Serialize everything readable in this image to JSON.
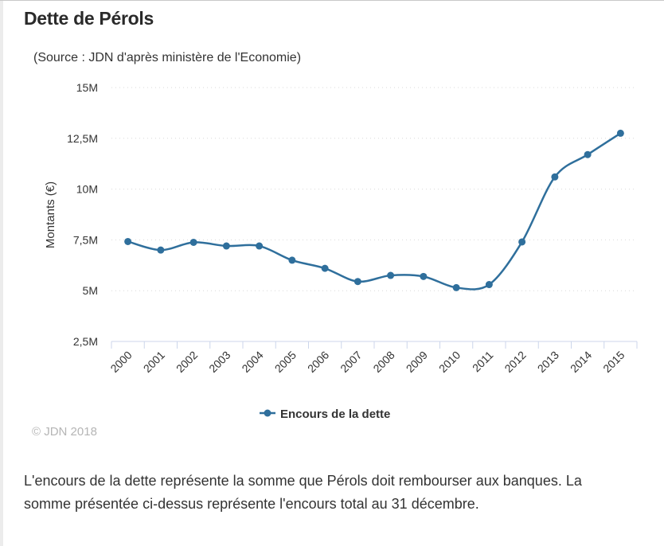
{
  "title": "Dette de Pérols",
  "source": "(Source : JDN d'après ministère de l'Economie)",
  "credit": "© JDN 2018",
  "description": "L'encours de la dette représente la somme que Pérols doit rembourser aux banques. La somme présentée ci-dessus représente l'encours total au 31 décembre.",
  "colors": {
    "series": "#2f6f9c",
    "grid": "#d9d9d9",
    "axis": "#ccd6eb"
  },
  "chart_data": {
    "type": "line",
    "title": "Dette de Pérols",
    "subtitle": "(Source : JDN d'après ministère de l'Economie)",
    "xlabel": "",
    "ylabel": "Montants (€)",
    "categories": [
      "2000",
      "2001",
      "2002",
      "2003",
      "2004",
      "2005",
      "2006",
      "2007",
      "2008",
      "2009",
      "2010",
      "2011",
      "2012",
      "2013",
      "2014",
      "2015"
    ],
    "series": [
      {
        "name": "Encours de la dette",
        "values": [
          7.42,
          7.0,
          7.38,
          7.2,
          7.2,
          6.5,
          6.1,
          5.45,
          5.75,
          5.7,
          5.15,
          5.3,
          7.4,
          10.6,
          11.7,
          12.75
        ],
        "unit": "M€"
      }
    ],
    "ylim": [
      2.5,
      15
    ],
    "yticks": [
      2.5,
      5,
      7.5,
      10,
      12.5,
      15
    ],
    "ytick_labels": [
      "2,5M",
      "5M",
      "7,5M",
      "10M",
      "12,5M",
      "15M"
    ],
    "grid": true,
    "legend": "bottom-center"
  }
}
